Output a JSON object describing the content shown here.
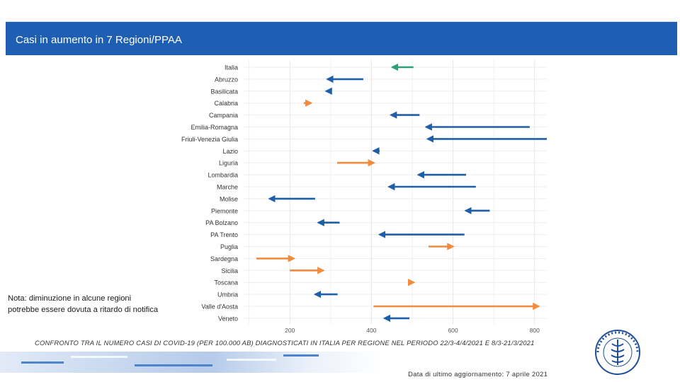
{
  "header": {
    "title": "Casi in aumento in 7 Regioni/PPAA"
  },
  "note": {
    "text": "Nota: diminuzione in alcune regioni potrebbe essere dovuta a ritardo di notifica"
  },
  "caption": {
    "text": "CONFRONTO TRA IL NUMERO CASI DI COVID-19 (PER 100.000 AB) DIAGNOSTICATI IN ITALIA PER REGIONE NEL PERIODO 22/3-4/4/2021 E 8/3-21/3/2021"
  },
  "footer": {
    "update": "Data di ultimo aggiornamento: 7 aprile 2021"
  },
  "colors": {
    "increase": "#f28b3c",
    "decrease": "#1f5fa8",
    "italy": "#2f9e7a",
    "header": "#1f5fb3"
  },
  "chart_data": {
    "type": "dumbbell-arrow",
    "title": "",
    "xlabel": "",
    "ylabel": "",
    "xlim": [
      85,
      830
    ],
    "xticks": [
      200,
      400,
      600,
      800
    ],
    "grid": true,
    "note": "Arrow points from period 8/3-21/3/2021 value to period 22/3-4/4/2021 value",
    "categories": [
      "Italia",
      "Abruzzo",
      "Basilicata",
      "Calabria",
      "Campania",
      "Emilia-Romagna",
      "Friuli-Venezia Giulia",
      "Lazio",
      "Liguria",
      "Lombardia",
      "Marche",
      "Molise",
      "Piemonte",
      "PA Bolzano",
      "PA Trento",
      "Puglia",
      "Sardegna",
      "Sicilia",
      "Toscana",
      "Umbria",
      "Valle d'Aosta",
      "Veneto"
    ],
    "series": [
      {
        "name": "8/3-21/3/2021",
        "values": [
          503,
          380,
          297,
          234,
          518,
          788,
          830,
          420,
          316,
          632,
          656,
          262,
          690,
          322,
          628,
          540,
          118,
          200,
          490,
          317,
          405,
          493
        ]
      },
      {
        "name": "22/3-4/4/2021",
        "values": [
          451,
          292,
          289,
          252,
          448,
          534,
          538,
          405,
          406,
          515,
          443,
          150,
          631,
          270,
          420,
          600,
          210,
          282,
          504,
          262,
          810,
          432
        ]
      }
    ],
    "direction": [
      "down",
      "down",
      "down",
      "up",
      "down",
      "down",
      "down",
      "down",
      "up",
      "down",
      "down",
      "down",
      "down",
      "down",
      "down",
      "up",
      "up",
      "up",
      "up",
      "down",
      "up",
      "down"
    ]
  }
}
